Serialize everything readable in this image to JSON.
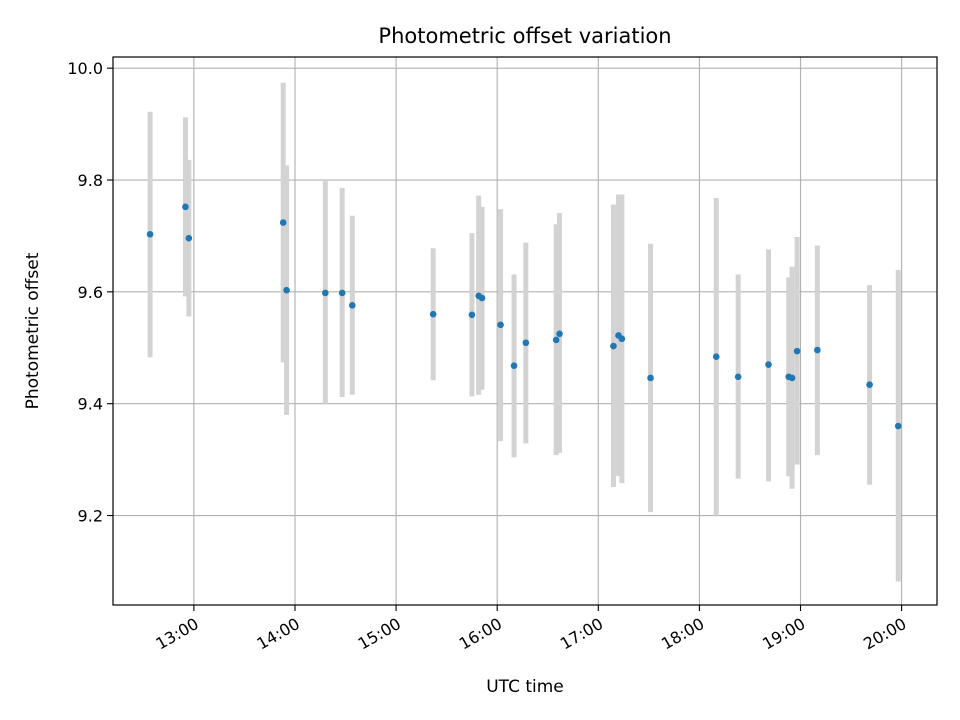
{
  "chart_data": {
    "type": "scatter",
    "title": "Photometric offset variation",
    "xlabel": "UTC time",
    "ylabel": "Photometric offset",
    "xlim": [
      "12:12",
      "20:21"
    ],
    "ylim": [
      9.04,
      10.02
    ],
    "x_ticks": [
      "13:00",
      "14:00",
      "15:00",
      "16:00",
      "17:00",
      "18:00",
      "19:00",
      "20:00"
    ],
    "y_ticks": [
      9.2,
      9.4,
      9.6,
      9.8,
      10.0
    ],
    "y_tick_labels": [
      "9.2",
      "9.4",
      "9.6",
      "9.8",
      "10.0"
    ],
    "grid": true,
    "colors": {
      "marker": "#1f77b4",
      "errorbar": "#d3d3d3",
      "grid": "#b0b0b0"
    },
    "series": [
      {
        "points": [
          {
            "x": "12:34",
            "y": 9.703,
            "lo": 9.483,
            "hi": 9.922
          },
          {
            "x": "12:55",
            "y": 9.752,
            "lo": 9.592,
            "hi": 9.912
          },
          {
            "x": "12:57",
            "y": 9.696,
            "lo": 9.556,
            "hi": 9.836
          },
          {
            "x": "13:53",
            "y": 9.724,
            "lo": 9.474,
            "hi": 9.974
          },
          {
            "x": "13:55",
            "y": 9.603,
            "lo": 9.38,
            "hi": 9.826
          },
          {
            "x": "14:18",
            "y": 9.598,
            "lo": 9.4,
            "hi": 9.798
          },
          {
            "x": "14:28",
            "y": 9.598,
            "lo": 9.412,
            "hi": 9.786
          },
          {
            "x": "14:34",
            "y": 9.576,
            "lo": 9.416,
            "hi": 9.736
          },
          {
            "x": "15:22",
            "y": 9.56,
            "lo": 9.442,
            "hi": 9.678
          },
          {
            "x": "15:45",
            "y": 9.559,
            "lo": 9.413,
            "hi": 9.705
          },
          {
            "x": "15:49",
            "y": 9.593,
            "lo": 9.416,
            "hi": 9.772
          },
          {
            "x": "15:51",
            "y": 9.589,
            "lo": 9.425,
            "hi": 9.752
          },
          {
            "x": "16:02",
            "y": 9.541,
            "lo": 9.333,
            "hi": 9.748
          },
          {
            "x": "16:10",
            "y": 9.468,
            "lo": 9.304,
            "hi": 9.631
          },
          {
            "x": "16:17",
            "y": 9.509,
            "lo": 9.329,
            "hi": 9.688
          },
          {
            "x": "16:35",
            "y": 9.514,
            "lo": 9.308,
            "hi": 9.721
          },
          {
            "x": "16:37",
            "y": 9.525,
            "lo": 9.312,
            "hi": 9.741
          },
          {
            "x": "17:09",
            "y": 9.503,
            "lo": 9.251,
            "hi": 9.756
          },
          {
            "x": "17:12",
            "y": 9.522,
            "lo": 9.271,
            "hi": 9.774
          },
          {
            "x": "17:14",
            "y": 9.516,
            "lo": 9.258,
            "hi": 9.774
          },
          {
            "x": "17:31",
            "y": 9.446,
            "lo": 9.206,
            "hi": 9.686
          },
          {
            "x": "18:10",
            "y": 9.484,
            "lo": 9.2,
            "hi": 9.768
          },
          {
            "x": "18:23",
            "y": 9.448,
            "lo": 9.266,
            "hi": 9.631
          },
          {
            "x": "18:41",
            "y": 9.47,
            "lo": 9.261,
            "hi": 9.676
          },
          {
            "x": "18:53",
            "y": 9.448,
            "lo": 9.27,
            "hi": 9.626
          },
          {
            "x": "18:55",
            "y": 9.446,
            "lo": 9.248,
            "hi": 9.645
          },
          {
            "x": "18:58",
            "y": 9.494,
            "lo": 9.291,
            "hi": 9.698
          },
          {
            "x": "19:10",
            "y": 9.496,
            "lo": 9.308,
            "hi": 9.683
          },
          {
            "x": "19:41",
            "y": 9.434,
            "lo": 9.255,
            "hi": 9.612
          },
          {
            "x": "19:58",
            "y": 9.36,
            "lo": 9.082,
            "hi": 9.639
          }
        ]
      }
    ]
  }
}
